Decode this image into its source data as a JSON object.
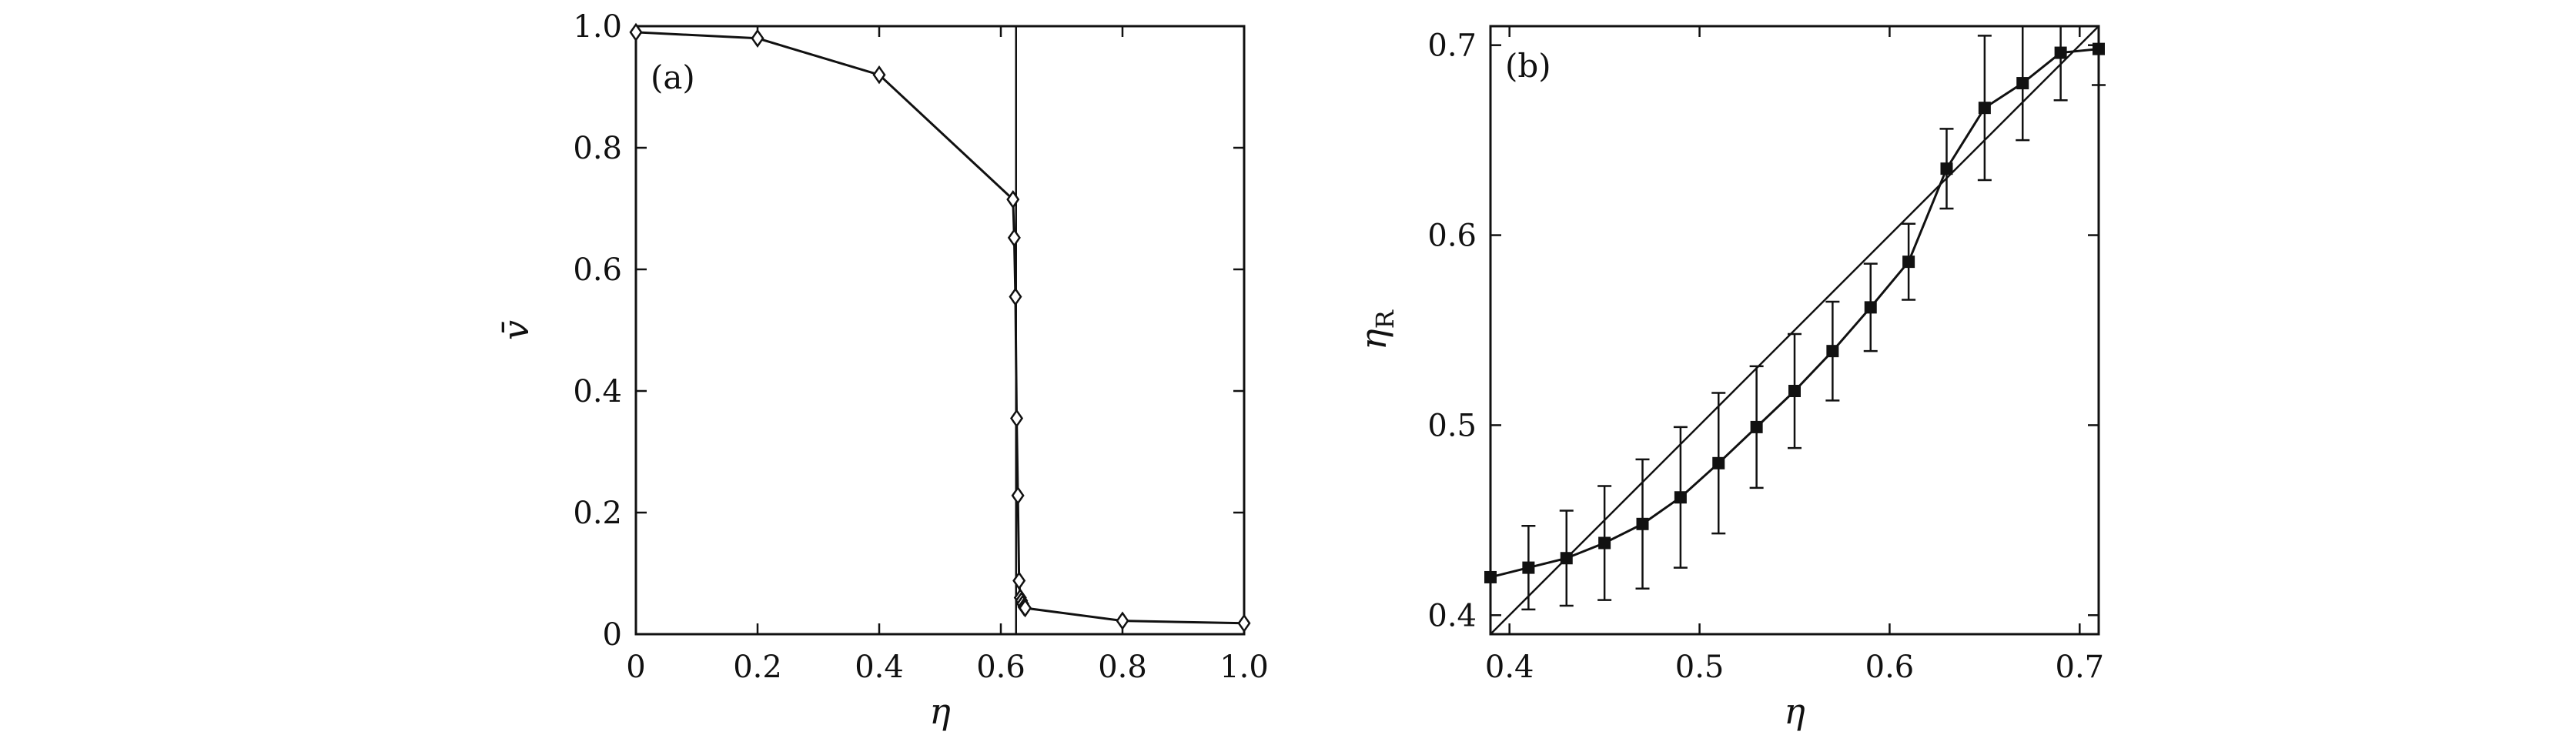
{
  "chart_data": [
    {
      "panel_label": "(a)",
      "type": "line",
      "marker": "open-diamond",
      "xlabel": "η",
      "ylabel": "v̄",
      "xlim": [
        0,
        1.0
      ],
      "ylim": [
        0,
        1.0
      ],
      "xticks": [
        "0",
        "0.2",
        "0.4",
        "0.6",
        "0.8",
        "1.0"
      ],
      "yticks": [
        "0",
        "0.2",
        "0.4",
        "0.6",
        "0.8",
        "1.0"
      ],
      "vertical_line_x": 0.625,
      "series": [
        {
          "x": [
            0,
            0.2,
            0.4,
            0.62,
            0.622,
            0.624,
            0.626,
            0.628,
            0.63,
            0.632,
            0.634,
            0.636,
            0.638,
            0.64,
            0.8,
            1.0
          ],
          "y": [
            0.99,
            0.98,
            0.92,
            0.715,
            0.652,
            0.555,
            0.355,
            0.228,
            0.088,
            0.06,
            0.055,
            0.05,
            0.045,
            0.043,
            0.022,
            0.018
          ]
        }
      ]
    },
    {
      "panel_label": "(b)",
      "type": "line",
      "marker": "filled-square",
      "xlabel": "η",
      "ylabel": "η_R",
      "xlim": [
        0.39,
        0.71
      ],
      "ylim": [
        0.39,
        0.71
      ],
      "xticks": [
        "0.4",
        "0.5",
        "0.6",
        "0.7"
      ],
      "yticks": [
        "0.4",
        "0.5",
        "0.6",
        "0.7"
      ],
      "reference_line": "y = x",
      "series": [
        {
          "x": [
            0.39,
            0.41,
            0.43,
            0.45,
            0.47,
            0.49,
            0.51,
            0.53,
            0.55,
            0.57,
            0.59,
            0.61,
            0.63,
            0.65,
            0.67,
            0.69,
            0.71
          ],
          "y": [
            0.42,
            0.425,
            0.43,
            0.438,
            0.448,
            0.462,
            0.48,
            0.499,
            0.518,
            0.539,
            0.562,
            0.586,
            0.635,
            0.667,
            0.68,
            0.696,
            0.698
          ],
          "error": [
            0.0,
            0.022,
            0.025,
            0.03,
            0.034,
            0.037,
            0.037,
            0.032,
            0.03,
            0.026,
            0.023,
            0.02,
            0.021,
            0.038,
            0.03,
            0.025,
            0.019
          ]
        }
      ]
    }
  ]
}
